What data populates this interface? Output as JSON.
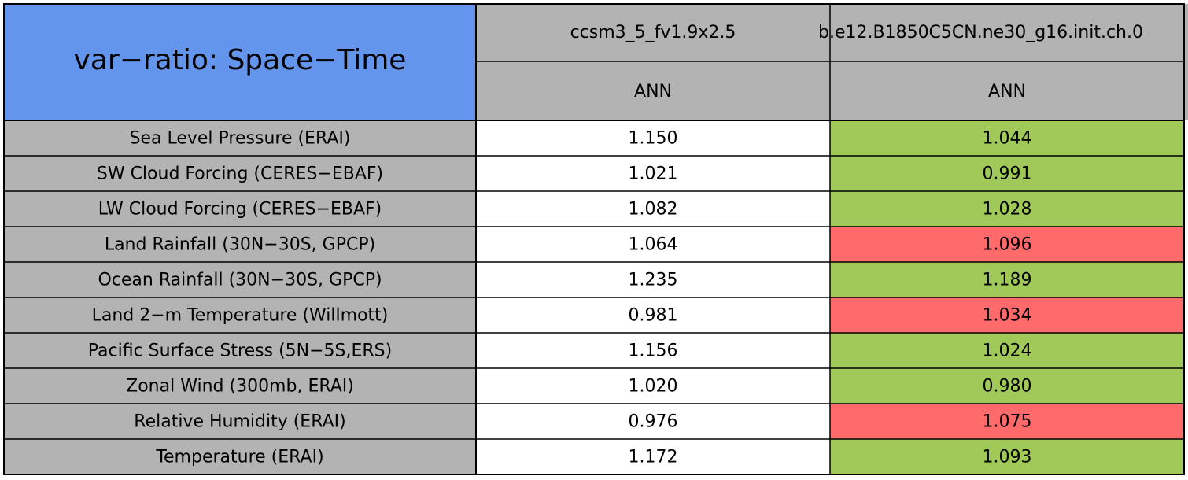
{
  "title": "var−ratio: Space−Time",
  "columns": [
    {
      "case": "ccsm3_5_fv1.9x2.5",
      "season": "ANN"
    },
    {
      "case": "b.e12.B1850C5CN.ne30_g16.init.ch.0",
      "season": "ANN"
    }
  ],
  "rows": [
    {
      "label": "Sea Level Pressure (ERAI)",
      "values": [
        "1.150",
        "1.044"
      ],
      "colors": [
        "#ffffff",
        "#a0c95a"
      ]
    },
    {
      "label": "SW Cloud Forcing (CERES−EBAF)",
      "values": [
        "1.021",
        "0.991"
      ],
      "colors": [
        "#ffffff",
        "#a0c95a"
      ]
    },
    {
      "label": "LW Cloud Forcing (CERES−EBAF)",
      "values": [
        "1.082",
        "1.028"
      ],
      "colors": [
        "#ffffff",
        "#a0c95a"
      ]
    },
    {
      "label": "Land Rainfall (30N−30S, GPCP)",
      "values": [
        "1.064",
        "1.096"
      ],
      "colors": [
        "#ffffff",
        "#ff6b6b"
      ]
    },
    {
      "label": "Ocean Rainfall (30N−30S, GPCP)",
      "values": [
        "1.235",
        "1.189"
      ],
      "colors": [
        "#ffffff",
        "#a0c95a"
      ]
    },
    {
      "label": "Land 2−m Temperature (Willmott)",
      "values": [
        "0.981",
        "1.034"
      ],
      "colors": [
        "#ffffff",
        "#ff6b6b"
      ]
    },
    {
      "label": "Pacific Surface Stress (5N−5S,ERS)",
      "values": [
        "1.156",
        "1.024"
      ],
      "colors": [
        "#ffffff",
        "#a0c95a"
      ]
    },
    {
      "label": "Zonal Wind (300mb, ERAI)",
      "values": [
        "1.020",
        "0.980"
      ],
      "colors": [
        "#ffffff",
        "#a0c95a"
      ]
    },
    {
      "label": "Relative Humidity (ERAI)",
      "values": [
        "0.976",
        "1.075"
      ],
      "colors": [
        "#ffffff",
        "#ff6b6b"
      ]
    },
    {
      "label": "Temperature (ERAI)",
      "values": [
        "1.172",
        "1.093"
      ],
      "colors": [
        "#ffffff",
        "#a0c95a"
      ]
    }
  ]
}
